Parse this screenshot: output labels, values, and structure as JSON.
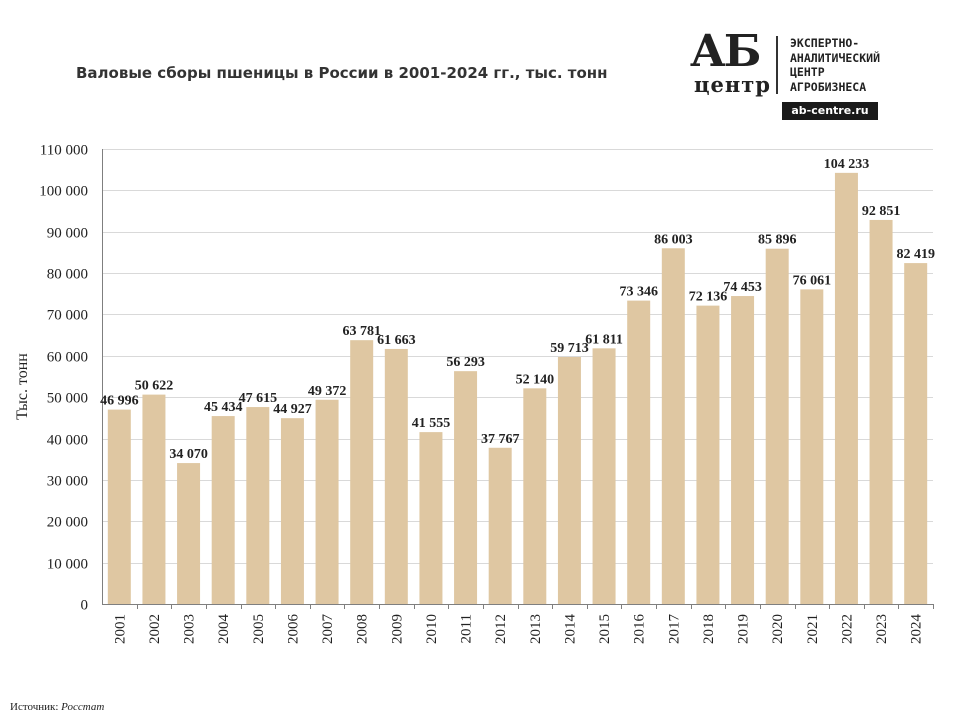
{
  "title": "Валовые сборы пшеницы в России в 2001-2024 гг., тыс. тонн",
  "logo": {
    "mark_top": "АБ",
    "mark_bottom": "центр",
    "lines": [
      "ЭКСПЕРТНО-",
      "АНАЛИТИЧЕСКИЙ",
      "ЦЕНТР",
      "АГРОБИЗНЕСА"
    ],
    "url": "ab-centre.ru"
  },
  "source": {
    "label": "Источник:",
    "value": "Росстат"
  },
  "chart_data": {
    "type": "bar",
    "categories": [
      "2001",
      "2002",
      "2003",
      "2004",
      "2005",
      "2006",
      "2007",
      "2008",
      "2009",
      "2010",
      "2011",
      "2012",
      "2013",
      "2014",
      "2015",
      "2016",
      "2017",
      "2018",
      "2019",
      "2020",
      "2021",
      "2022",
      "2023",
      "2024"
    ],
    "values": [
      46996,
      50622,
      34070,
      45434,
      47615,
      44927,
      49372,
      63781,
      61663,
      41555,
      56293,
      37767,
      52140,
      59713,
      61811,
      73346,
      86003,
      72136,
      74453,
      85896,
      76061,
      104233,
      92851,
      82419
    ],
    "data_labels": [
      "46 996",
      "50 622",
      "34 070",
      "45 434",
      "47 615",
      "44 927",
      "49 372",
      "63 781",
      "61 663",
      "41 555",
      "56 293",
      "37 767",
      "52 140",
      "59 713",
      "61 811",
      "73 346",
      "86 003",
      "72 136",
      "74 453",
      "85 896",
      "76 061",
      "104 233",
      "92 851",
      "82 419"
    ],
    "ylabel": "Тыс. тонн",
    "ylim": [
      0,
      110000
    ],
    "yticks": [
      0,
      10000,
      20000,
      30000,
      40000,
      50000,
      60000,
      70000,
      80000,
      90000,
      100000,
      110000
    ],
    "ytick_labels": [
      "0",
      "10 000",
      "20 000",
      "30 000",
      "40 000",
      "50 000",
      "60 000",
      "70 000",
      "80 000",
      "90 000",
      "100 000",
      "110 000"
    ],
    "grid": true,
    "bar_color": "#dfc7a2",
    "grid_color": "#d9d9d9",
    "axis_color": "#7f7f7f"
  }
}
